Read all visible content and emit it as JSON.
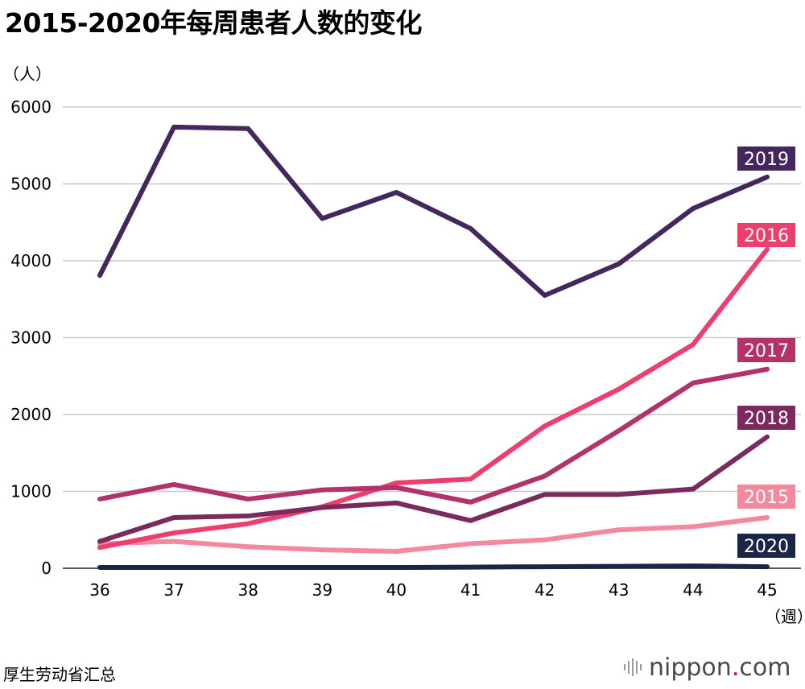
{
  "title": "2015-2020年每周患者人数的变化",
  "y_unit": "（人）",
  "x_unit": "（週）",
  "source": "厚生劳动省汇总",
  "logo": {
    "name": "nippon",
    "dot": ".",
    "suffix": "com"
  },
  "chart_data": {
    "type": "line",
    "title": "2015-2020年每周患者人数的变化",
    "xlabel": "（週）",
    "ylabel": "（人）",
    "x": [
      "36",
      "37",
      "38",
      "39",
      "40",
      "41",
      "42",
      "43",
      "44",
      "45"
    ],
    "ylim": [
      0,
      6000
    ],
    "yticks": [
      0,
      1000,
      2000,
      3000,
      4000,
      5000,
      6000
    ],
    "grid": true,
    "series": [
      {
        "name": "2015",
        "color": "#f4889f",
        "values": [
          320,
          350,
          280,
          240,
          220,
          320,
          370,
          500,
          540,
          660
        ]
      },
      {
        "name": "2016",
        "color": "#ee3e6e",
        "values": [
          270,
          460,
          580,
          800,
          1110,
          1160,
          1850,
          2330,
          2910,
          4150
        ]
      },
      {
        "name": "2017",
        "color": "#b2336a",
        "values": [
          900,
          1090,
          900,
          1020,
          1050,
          860,
          1200,
          1790,
          2410,
          2590
        ]
      },
      {
        "name": "2018",
        "color": "#7b2a5e",
        "values": [
          350,
          660,
          680,
          790,
          850,
          620,
          960,
          960,
          1030,
          1710
        ]
      },
      {
        "name": "2019",
        "color": "#44275f",
        "values": [
          3810,
          5740,
          5720,
          4550,
          4890,
          4420,
          3550,
          3960,
          4680,
          5090
        ]
      },
      {
        "name": "2020",
        "color": "#1b2545",
        "values": [
          10,
          10,
          10,
          10,
          10,
          15,
          20,
          25,
          30,
          20
        ]
      }
    ]
  }
}
